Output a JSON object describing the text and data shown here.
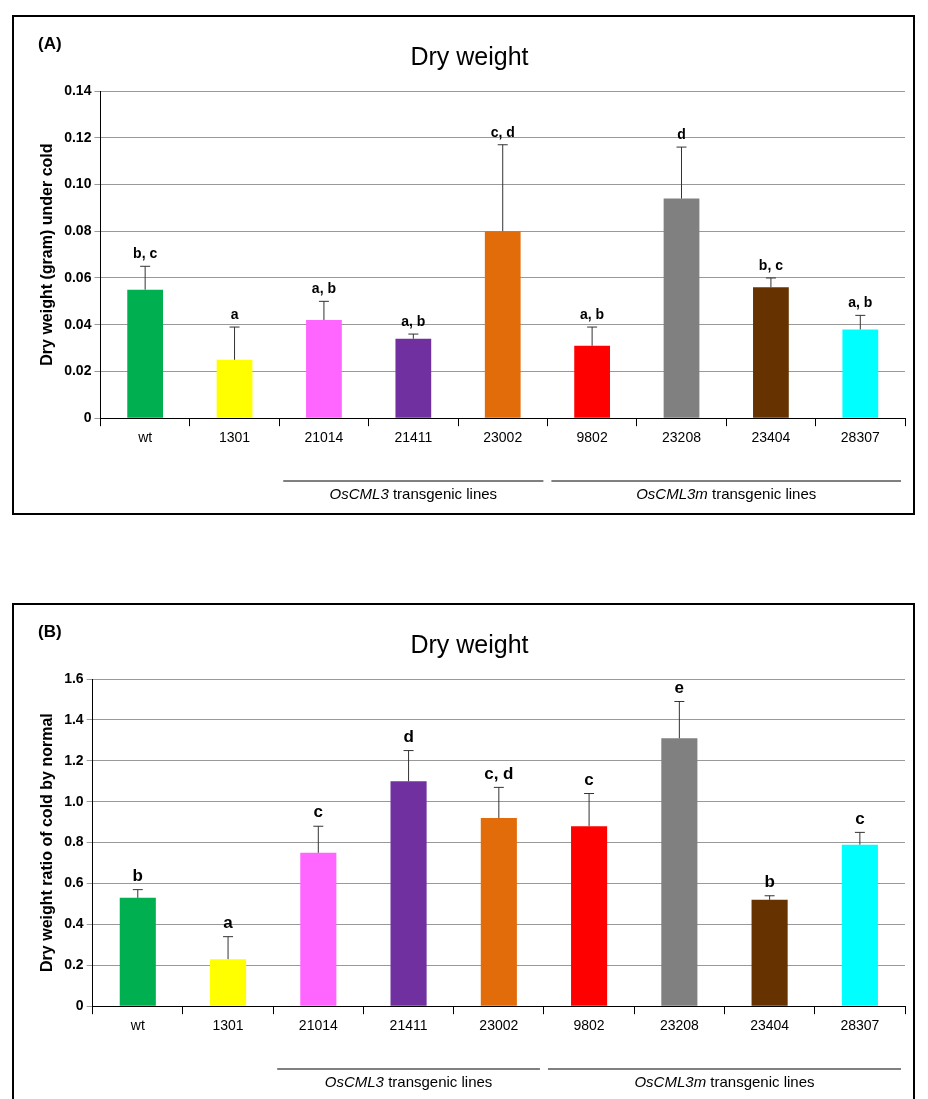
{
  "chart_data": [
    {
      "type": "bar",
      "title": "Dry weight",
      "ylabel": "Dry weight (gram) under cold",
      "categories": [
        "wt",
        "1301",
        "21014",
        "21411",
        "23002",
        "9802",
        "23208",
        "23404",
        "28307"
      ],
      "values": [
        0.055,
        0.025,
        0.042,
        0.034,
        0.08,
        0.031,
        0.094,
        0.056,
        0.038
      ],
      "colors": [
        "#00b050",
        "#ffff00",
        "#ff66ff",
        "#7030a0",
        "#e36c0a",
        "#ff0000",
        "#808080",
        "#663300",
        "#00ffff"
      ],
      "errors": [
        [
          0.055,
          0.065
        ],
        [
          0.025,
          0.039
        ],
        [
          0.042,
          0.05
        ],
        [
          0.034,
          0.036
        ],
        [
          0.08,
          0.117
        ],
        [
          0.031,
          0.039
        ],
        [
          0.094,
          0.116
        ],
        [
          0.056,
          0.06
        ],
        [
          0.038,
          0.044
        ]
      ],
      "ylim": [
        0,
        0.14
      ],
      "yticks": [
        {
          "value": 0,
          "label": "0"
        },
        0.02,
        0.04,
        0.06,
        0.08,
        {
          "value": 0.1,
          "label": "0.10"
        },
        0.12,
        0.14
      ],
      "grid": "y",
      "annotations": [
        "(A)",
        "OsCML3 transgenic lines",
        "OsCML3m transgenic lines",
        {
          "text": "b, c",
          "x": "wt",
          "y": 0.065
        },
        {
          "text": "a",
          "x": "1301",
          "y": 0.039
        },
        {
          "text": "a, b",
          "x": "21014",
          "y": 0.05
        },
        {
          "text": "a, b",
          "x": "21411",
          "y": 0.036
        },
        {
          "text": "c, d",
          "x": "23002",
          "y": 0.117
        },
        {
          "text": "a, b",
          "x": "9802",
          "y": 0.039
        },
        {
          "text": "d",
          "x": "23208",
          "y": 0.116
        },
        {
          "text": "b, c",
          "x": "23404",
          "y": 0.06
        },
        {
          "text": "a, b",
          "x": "28307",
          "y": 0.044
        }
      ]
    },
    {
      "type": "bar",
      "title": "Dry weight",
      "ylabel": "Dry weight ratio of cold by normal",
      "categories": [
        "wt",
        "1301",
        "21014",
        "21411",
        "23002",
        "9802",
        "23208",
        "23404",
        "28307"
      ],
      "values": [
        0.53,
        0.23,
        0.75,
        1.1,
        0.92,
        0.88,
        1.31,
        0.52,
        0.79
      ],
      "colors": [
        "#00b050",
        "#ffff00",
        "#ff66ff",
        "#7030a0",
        "#e36c0a",
        "#ff0000",
        "#808080",
        "#663300",
        "#00ffff"
      ],
      "errors": [
        [
          0.53,
          0.57
        ],
        [
          0.23,
          0.34
        ],
        [
          0.75,
          0.88
        ],
        [
          1.1,
          1.25
        ],
        [
          0.92,
          1.07
        ],
        [
          0.88,
          1.04
        ],
        [
          1.31,
          1.49
        ],
        [
          0.52,
          0.54
        ],
        [
          0.79,
          0.85
        ]
      ],
      "ylim": [
        0,
        1.6
      ],
      "yticks": [
        {
          "value": 0,
          "label": "0"
        },
        0.2,
        0.4,
        0.6,
        0.8,
        {
          "value": 1,
          "label": "1.0"
        },
        1.2,
        1.4,
        1.6
      ],
      "grid": "y",
      "annotations": [
        "(B)",
        "OsCML3 transgenic lines",
        "OsCML3m transgenic lines",
        {
          "text": "b",
          "x": "wt",
          "y": 0.57
        },
        {
          "text": "a",
          "x": "1301",
          "y": 0.34
        },
        {
          "text": "c",
          "x": "21014",
          "y": 0.88
        },
        {
          "text": "d",
          "x": "21411",
          "y": 1.25
        },
        {
          "text": "c, d",
          "x": "23002",
          "y": 1.07
        },
        {
          "text": "c",
          "x": "9802",
          "y": 1.04
        },
        {
          "text": "e",
          "x": "23208",
          "y": 1.49
        },
        {
          "text": "b",
          "x": "23404",
          "y": 0.54
        },
        {
          "text": "c",
          "x": "28307",
          "y": 0.85
        }
      ]
    }
  ]
}
